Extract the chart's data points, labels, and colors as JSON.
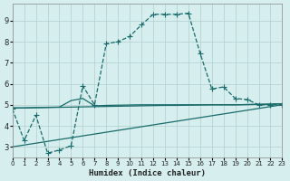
{
  "xlabel": "Humidex (Indice chaleur)",
  "bg_color": "#d6eeee",
  "grid_color": "#b0cece",
  "line_color": "#1a6b6b",
  "xlim": [
    0,
    23
  ],
  "ylim": [
    2.5,
    9.8
  ],
  "xticks": [
    0,
    1,
    2,
    3,
    4,
    5,
    6,
    7,
    8,
    9,
    10,
    11,
    12,
    13,
    14,
    15,
    16,
    17,
    18,
    19,
    20,
    21,
    22,
    23
  ],
  "yticks": [
    3,
    4,
    5,
    6,
    7,
    8,
    9
  ],
  "line1_x": [
    0,
    1,
    2,
    3,
    4,
    5,
    6,
    7,
    8,
    9,
    10,
    11,
    12,
    13,
    14,
    15,
    16,
    17,
    18,
    19,
    20,
    21,
    22,
    23
  ],
  "line1_y": [
    4.8,
    3.3,
    4.5,
    2.7,
    2.85,
    3.05,
    5.9,
    5.0,
    7.9,
    8.0,
    8.25,
    8.8,
    9.3,
    9.3,
    9.3,
    9.35,
    7.45,
    5.75,
    5.85,
    5.3,
    5.25,
    5.0,
    5.0,
    5.0
  ],
  "line2_x": [
    0,
    1,
    2,
    3,
    4,
    5,
    6,
    7,
    8,
    9,
    10,
    11,
    12,
    13,
    14,
    15,
    16,
    17,
    18,
    19,
    20,
    21,
    22,
    23
  ],
  "line2_y": [
    4.85,
    4.85,
    4.86,
    4.87,
    4.88,
    4.89,
    4.9,
    4.91,
    4.92,
    4.93,
    4.94,
    4.95,
    4.96,
    4.97,
    4.97,
    4.98,
    4.99,
    5.0,
    5.0,
    5.0,
    5.01,
    5.02,
    5.03,
    5.05
  ],
  "line3_x": [
    0,
    23
  ],
  "line3_y": [
    3.0,
    5.0
  ],
  "line4_x": [
    0,
    1,
    2,
    3,
    4,
    5,
    6,
    7,
    8,
    9,
    10,
    11,
    12,
    13,
    14,
    15,
    16,
    17,
    18,
    19,
    20,
    21,
    22,
    23
  ],
  "line4_y": [
    4.85,
    4.85,
    4.87,
    4.88,
    4.89,
    5.2,
    5.3,
    4.95,
    4.97,
    4.98,
    4.99,
    5.0,
    5.0,
    5.0,
    5.0,
    5.0,
    5.0,
    5.0,
    5.0,
    5.0,
    5.01,
    5.02,
    5.03,
    5.05
  ],
  "marker_size": 2.5,
  "linewidth": 0.9
}
